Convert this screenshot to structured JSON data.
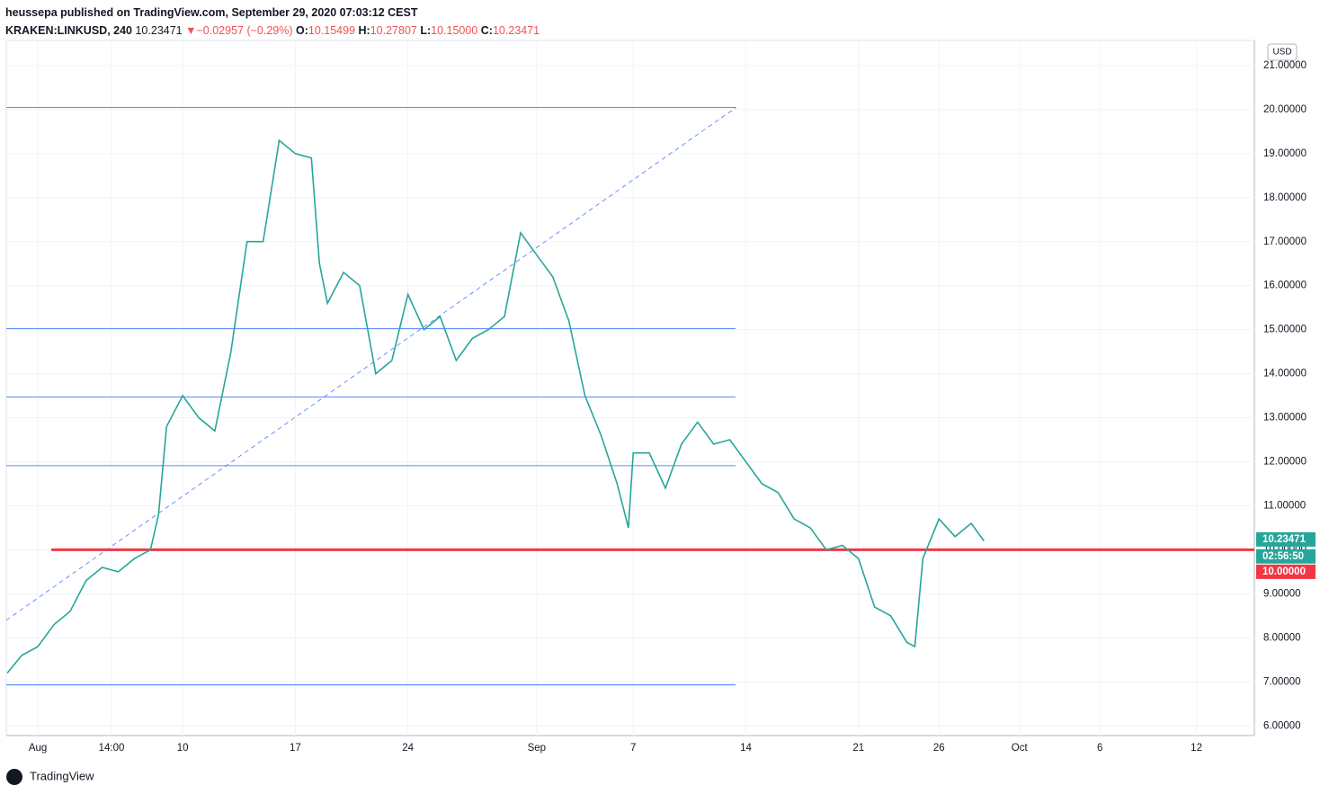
{
  "header": {
    "published": "heussepa published on TradingView.com, September 29, 2020 07:03:12 CEST",
    "symbol": "KRAKEN:LINKUSD, 240",
    "last": "10.23471",
    "arrow": "▼",
    "change": "−0.02957 (−0.29%)",
    "o_label": "O:",
    "o": "10.15499",
    "h_label": "H:",
    "h": "10.27807",
    "l_label": "L:",
    "l": "10.15000",
    "c_label": "C:",
    "c": "10.23471"
  },
  "footer": {
    "brand": "TradingView"
  },
  "chart_data": {
    "type": "line",
    "currency": "USD",
    "x": [
      -1.9,
      -1,
      0,
      1,
      2,
      3,
      4,
      5,
      6,
      7,
      7.5,
      8,
      9,
      10,
      11,
      12,
      13,
      14,
      15,
      16,
      17,
      17.5,
      18,
      19,
      20,
      21,
      22,
      23,
      24,
      25,
      26,
      27,
      28,
      29,
      30,
      31,
      32,
      33,
      34,
      35,
      36,
      36.7,
      37,
      38,
      39,
      40,
      41,
      42,
      43,
      44,
      45,
      46,
      47,
      48,
      49,
      50,
      51,
      52,
      53,
      54,
      54.5,
      55,
      56,
      57,
      58,
      58.8
    ],
    "series": [
      {
        "name": "LINKUSD",
        "color": "#26a69a",
        "values": [
          7.2,
          7.6,
          7.8,
          8.3,
          8.6,
          9.3,
          9.6,
          9.5,
          9.8,
          10.0,
          10.8,
          12.8,
          13.5,
          13.0,
          12.7,
          14.5,
          17.0,
          17.0,
          19.3,
          19.0,
          18.9,
          16.5,
          15.6,
          16.3,
          16.0,
          14.0,
          14.3,
          15.8,
          15.0,
          15.3,
          14.3,
          14.8,
          15.0,
          15.3,
          17.2,
          16.7,
          16.2,
          15.2,
          13.5,
          12.6,
          11.5,
          10.5,
          12.2,
          12.2,
          11.4,
          12.4,
          12.9,
          12.4,
          12.5,
          12.0,
          11.5,
          11.3,
          10.7,
          10.5,
          10.0,
          10.1,
          9.8,
          8.7,
          8.5,
          7.9,
          7.8,
          9.8,
          10.7,
          10.3,
          10.6,
          10.2
        ]
      }
    ],
    "horizontal_lines": [
      20.05,
      15.02,
      13.47,
      11.91,
      6.93
    ],
    "trend_line": {
      "x": [
        -1.96,
        43.4
      ],
      "values": [
        8.4,
        20.05
      ]
    },
    "support_line": {
      "x": [
        0.84,
        75.6
      ],
      "values": [
        10,
        10
      ],
      "color": "#f23645"
    },
    "price_labels": [
      {
        "value": 10.23471,
        "label": "10.23471",
        "color": "#26a69a"
      },
      {
        "value": 9.85,
        "label": "02:56:50",
        "color": "#26a69a"
      },
      {
        "value": 9.5,
        "label": "10.00000",
        "color": "#f23645"
      }
    ],
    "xlim": [
      -1.96,
      75.6
    ],
    "ylim": [
      5.78,
      21.57
    ],
    "xticks": [
      {
        "value": 0,
        "label": "Aug"
      },
      {
        "value": 4.58,
        "label": "14:00"
      },
      {
        "value": 9,
        "label": "10"
      },
      {
        "value": 16,
        "label": "17"
      },
      {
        "value": 23,
        "label": "24"
      },
      {
        "value": 31,
        "label": "Sep"
      },
      {
        "value": 37,
        "label": "7"
      },
      {
        "value": 44,
        "label": "14"
      },
      {
        "value": 51,
        "label": "21"
      },
      {
        "value": 56,
        "label": "26"
      },
      {
        "value": 61,
        "label": "Oct"
      },
      {
        "value": 66,
        "label": "6"
      },
      {
        "value": 72,
        "label": "12"
      }
    ],
    "yticks": [
      {
        "value": 6,
        "label": "6.00000"
      },
      {
        "value": 7,
        "label": "7.00000"
      },
      {
        "value": 8,
        "label": "8.00000"
      },
      {
        "value": 9,
        "label": "9.00000"
      },
      {
        "value": 10,
        "label": "10.00000"
      },
      {
        "value": 11,
        "label": "11.00000"
      },
      {
        "value": 12,
        "label": "12.00000"
      },
      {
        "value": 13,
        "label": "13.00000"
      },
      {
        "value": 14,
        "label": "14.00000"
      },
      {
        "value": 15,
        "label": "15.00000"
      },
      {
        "value": 16,
        "label": "16.00000"
      },
      {
        "value": 17,
        "label": "17.00000"
      },
      {
        "value": 18,
        "label": "18.00000"
      },
      {
        "value": 19,
        "label": "19.00000"
      },
      {
        "value": 20,
        "label": "20.00000"
      },
      {
        "value": 21,
        "label": "21.00000"
      }
    ],
    "grid": true
  }
}
